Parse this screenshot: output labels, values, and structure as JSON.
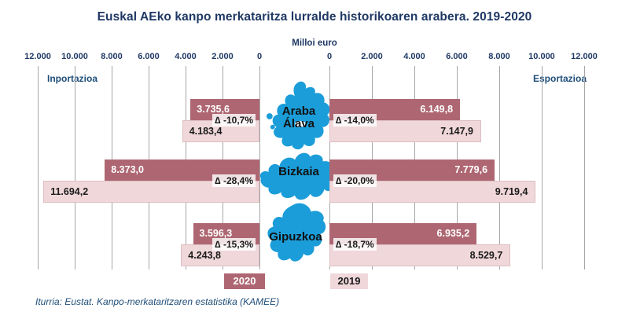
{
  "source": "Iturria: Eustat. Kanpo-merkataritzaren estatistika (KAMEE)",
  "colors": {
    "title_text": "#1F3864",
    "axis_side_labels": "#1F4E79",
    "bar_2020": "#AE6772",
    "bar_2019": "#F0D8DA",
    "map_fill": "#1B9DD9",
    "gridline": "#A6A6A6",
    "source_text": "#1F4E79"
  },
  "chart_data": {
    "type": "bar",
    "orientation": "horizontal",
    "diverging": true,
    "grid": true,
    "title": "Euskal AEko kanpo merkataritza lurralde historikoaren arabera. 2019-2020",
    "subtitle": "Milloi euro",
    "unit": "Milloi euro",
    "axis_max": 12000,
    "tick_interval": 2000,
    "left_axis": {
      "label": "Inportazioa",
      "ticks": [
        "12.000",
        "10.000",
        "8.000",
        "6.000",
        "4.000",
        "2.000",
        "0"
      ]
    },
    "right_axis": {
      "label": "Esportazioa",
      "ticks": [
        "0",
        "2.000",
        "4.000",
        "6.000",
        "8.000",
        "10.000",
        "12.000"
      ]
    },
    "legend": {
      "position": "bottom",
      "items": [
        {
          "label": "2020",
          "color": "#AE6772"
        },
        {
          "label": "2019",
          "color": "#F0D8DA"
        }
      ]
    },
    "territories": [
      {
        "name_lines": [
          "Araba",
          "Álava"
        ],
        "imports": {
          "y2020": {
            "value": 3735.6,
            "label": "3.735,6"
          },
          "y2019": {
            "value": 4183.4,
            "label": "4.183,4"
          },
          "delta_label": "∆ -10,7%"
        },
        "exports": {
          "y2020": {
            "value": 6149.8,
            "label": "6.149,8"
          },
          "y2019": {
            "value": 7147.9,
            "label": "7.147,9"
          },
          "delta_label": "∆ -14,0%"
        }
      },
      {
        "name_lines": [
          "Bizkaia",
          ""
        ],
        "imports": {
          "y2020": {
            "value": 8373.0,
            "label": "8.373,0"
          },
          "y2019": {
            "value": 11694.2,
            "label": "11.694,2"
          },
          "delta_label": "∆ -28,4%"
        },
        "exports": {
          "y2020": {
            "value": 7779.6,
            "label": "7.779,6"
          },
          "y2019": {
            "value": 9719.4,
            "label": "9.719,4"
          },
          "delta_label": "∆ -20,0%"
        }
      },
      {
        "name_lines": [
          "Gipuzkoa",
          ""
        ],
        "imports": {
          "y2020": {
            "value": 3596.3,
            "label": "3.596,3"
          },
          "y2019": {
            "value": 4243.8,
            "label": "4.243,8"
          },
          "delta_label": "∆ -15,3%"
        },
        "exports": {
          "y2020": {
            "value": 6935.2,
            "label": "6.935,2"
          },
          "y2019": {
            "value": 8529.7,
            "label": "8.529,7"
          },
          "delta_label": "∆ -18,7%"
        }
      }
    ]
  }
}
